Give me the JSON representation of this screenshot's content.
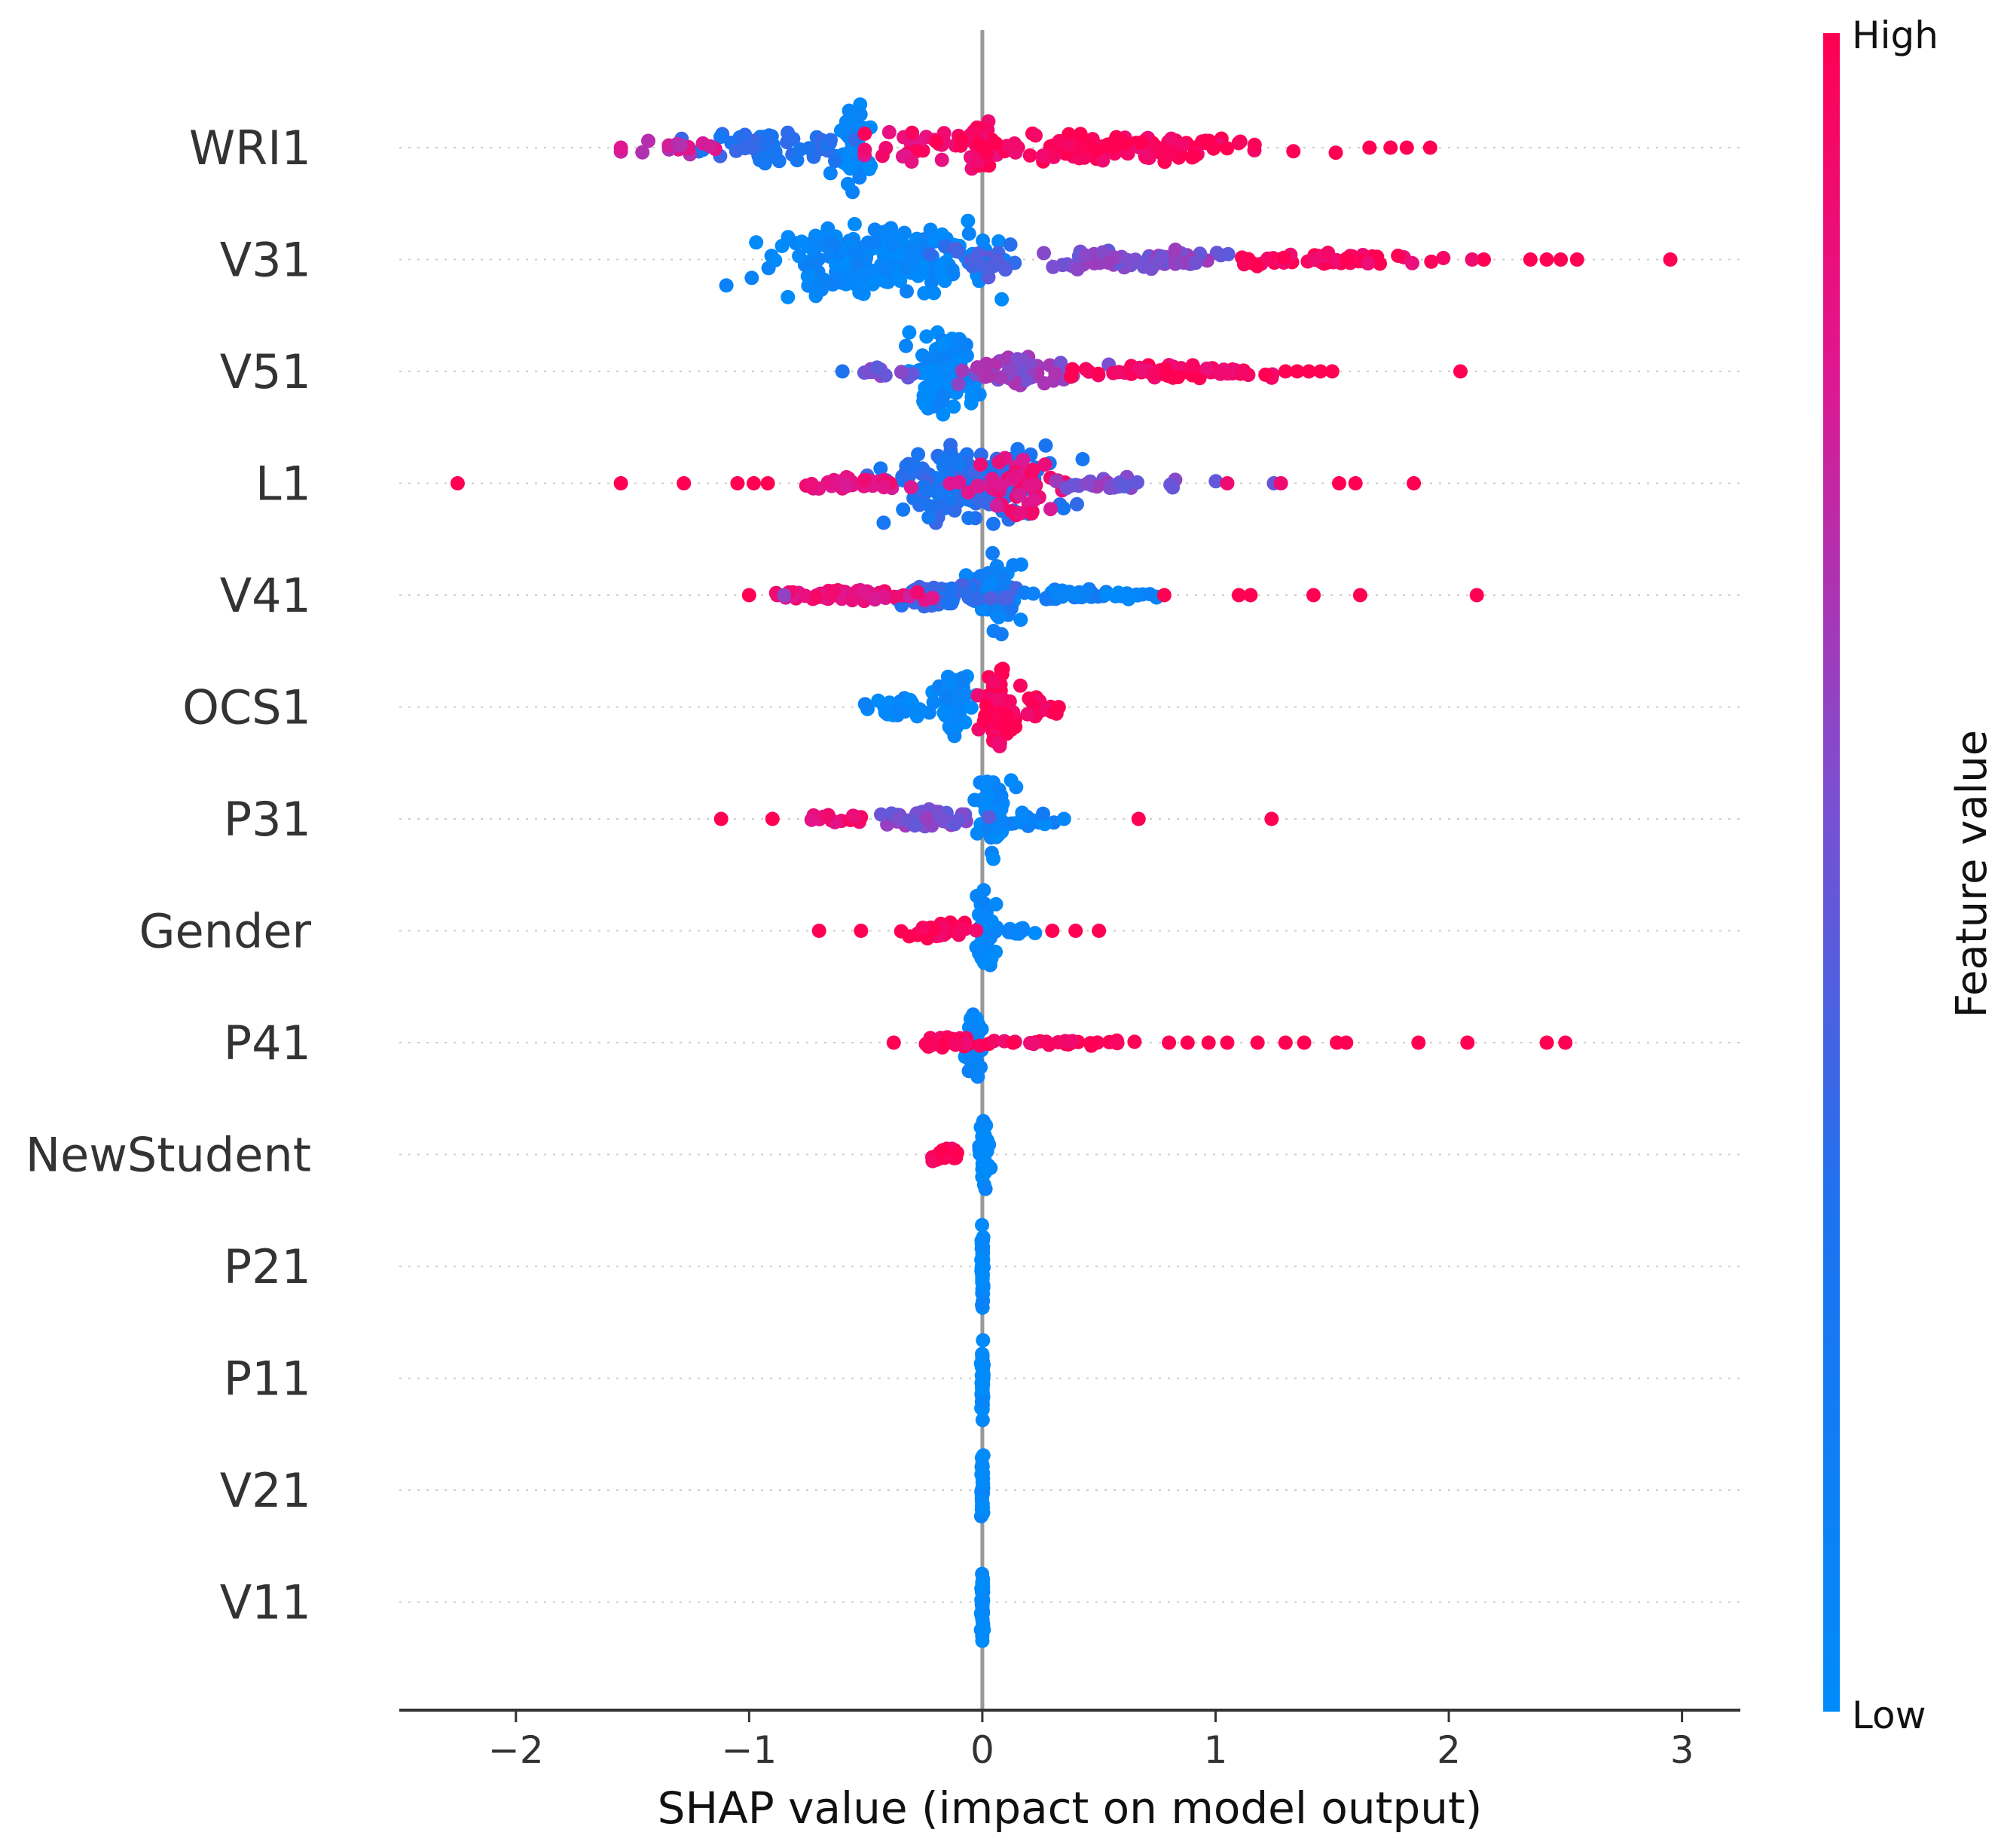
{
  "chart_data": {
    "type": "scatter",
    "subtype": "shap-beeswarm-summary",
    "xlabel": "SHAP value (impact on model output)",
    "xlim": [
      -2.5,
      3.25
    ],
    "xticks": [
      -2,
      -1,
      0,
      1,
      2,
      3
    ],
    "xtick_labels": [
      "−2",
      "−1",
      "0",
      "1",
      "2",
      "3"
    ],
    "colorbar": {
      "title": "Feature value",
      "high_label": "High",
      "low_label": "Low",
      "high_color": "#ff0052",
      "low_color": "#008bfb"
    },
    "features": [
      {
        "name": "WRI1",
        "min": -1.55,
        "max": 1.92,
        "clusters": [
          {
            "center": -0.55,
            "spread": 0.05,
            "height": 0.85,
            "n": 60,
            "color": 0.05
          },
          {
            "center": -0.9,
            "spread": 0.3,
            "height": 0.35,
            "n": 55,
            "color": 0.3
          },
          {
            "center": -1.3,
            "spread": 0.18,
            "height": 0.15,
            "n": 16,
            "color": 0.75
          },
          {
            "center": -0.3,
            "spread": 0.18,
            "height": 0.4,
            "n": 25,
            "color": 0.9
          },
          {
            "center": 0.0,
            "spread": 0.05,
            "height": 0.55,
            "n": 40,
            "color": 0.95
          },
          {
            "center": 0.6,
            "spread": 0.55,
            "height": 0.28,
            "n": 120,
            "color": 0.97
          }
        ],
        "outliers": [
          {
            "x": 1.92,
            "c": 1
          },
          {
            "x": 1.82,
            "c": 1
          },
          {
            "x": 1.75,
            "c": 1
          },
          {
            "x": 1.66,
            "c": 1
          },
          {
            "x": -1.55,
            "c": 0.8
          }
        ]
      },
      {
        "name": "V31",
        "min": -1.1,
        "max": 2.95,
        "clusters": [
          {
            "center": -0.45,
            "spread": 0.35,
            "height": 0.75,
            "n": 210,
            "color": 0.05
          },
          {
            "center": 0.0,
            "spread": 0.12,
            "height": 0.35,
            "n": 30,
            "color": 0.4
          },
          {
            "center": 0.6,
            "spread": 0.35,
            "height": 0.2,
            "n": 70,
            "color": 0.55
          },
          {
            "center": 1.5,
            "spread": 0.35,
            "height": 0.15,
            "n": 55,
            "color": 0.95
          }
        ],
        "outliers": [
          {
            "x": 2.95,
            "c": 1
          },
          {
            "x": 2.55,
            "c": 1
          },
          {
            "x": 2.48,
            "c": 1
          },
          {
            "x": 2.42,
            "c": 1
          },
          {
            "x": 2.35,
            "c": 1
          },
          {
            "x": 2.15,
            "c": 1
          },
          {
            "x": 2.1,
            "c": 0.9
          }
        ]
      },
      {
        "name": "V51",
        "min": -0.6,
        "max": 2.05,
        "clusters": [
          {
            "center": -0.17,
            "spread": 0.1,
            "height": 0.8,
            "n": 110,
            "color": 0.05
          },
          {
            "center": -0.4,
            "spread": 0.1,
            "height": 0.15,
            "n": 12,
            "color": 0.55
          },
          {
            "center": 0.15,
            "spread": 0.2,
            "height": 0.3,
            "n": 60,
            "color": 0.6
          },
          {
            "center": 0.85,
            "spread": 0.35,
            "height": 0.15,
            "n": 60,
            "color": 0.95
          }
        ],
        "outliers": [
          {
            "x": 2.05,
            "c": 1
          },
          {
            "x": 1.5,
            "c": 1
          },
          {
            "x": 1.45,
            "c": 1
          },
          {
            "x": 1.4,
            "c": 1
          },
          {
            "x": 1.35,
            "c": 1
          },
          {
            "x": 1.3,
            "c": 1
          },
          {
            "x": -0.6,
            "c": 0.3
          }
        ]
      },
      {
        "name": "L1",
        "min": -2.25,
        "max": 1.85,
        "clusters": [
          {
            "center": -0.05,
            "spread": 0.3,
            "height": 0.75,
            "n": 170,
            "color": 0.3
          },
          {
            "center": 0.15,
            "spread": 0.15,
            "height": 0.6,
            "n": 50,
            "color": 0.85
          },
          {
            "center": -0.55,
            "spread": 0.25,
            "height": 0.15,
            "n": 35,
            "color": 0.85
          },
          {
            "center": 0.6,
            "spread": 0.25,
            "height": 0.12,
            "n": 25,
            "color": 0.55
          }
        ],
        "outliers": [
          {
            "x": -2.25,
            "c": 1
          },
          {
            "x": -1.55,
            "c": 1
          },
          {
            "x": -1.28,
            "c": 1
          },
          {
            "x": -1.05,
            "c": 1
          },
          {
            "x": -0.98,
            "c": 1
          },
          {
            "x": -0.92,
            "c": 1
          },
          {
            "x": 1.05,
            "c": 0.9
          },
          {
            "x": 1.25,
            "c": 0.5
          },
          {
            "x": 1.28,
            "c": 0.9
          },
          {
            "x": 1.53,
            "c": 1
          },
          {
            "x": 1.6,
            "c": 1
          },
          {
            "x": 1.85,
            "c": 1
          }
        ]
      },
      {
        "name": "V41",
        "min": -1.0,
        "max": 2.12,
        "clusters": [
          {
            "center": 0.05,
            "spread": 0.08,
            "height": 0.8,
            "n": 60,
            "color": 0.1
          },
          {
            "center": -0.15,
            "spread": 0.2,
            "height": 0.28,
            "n": 60,
            "color": 0.35
          },
          {
            "center": -0.6,
            "spread": 0.22,
            "height": 0.12,
            "n": 50,
            "color": 0.85
          },
          {
            "center": 0.35,
            "spread": 0.15,
            "height": 0.12,
            "n": 35,
            "color": 0.15
          },
          {
            "center": 0.65,
            "spread": 0.1,
            "height": 0.08,
            "n": 14,
            "color": 0.05
          }
        ],
        "outliers": [
          {
            "x": -1.0,
            "c": 1
          },
          {
            "x": -0.88,
            "c": 0.9
          },
          {
            "x": -0.85,
            "c": 0.6
          },
          {
            "x": 1.1,
            "c": 1
          },
          {
            "x": 1.15,
            "c": 1
          },
          {
            "x": 1.42,
            "c": 1
          },
          {
            "x": 1.62,
            "c": 1
          },
          {
            "x": 2.12,
            "c": 1
          },
          {
            "x": 0.78,
            "c": 1
          }
        ]
      },
      {
        "name": "OCS1",
        "min": -0.6,
        "max": 0.38,
        "clusters": [
          {
            "center": -0.12,
            "spread": 0.06,
            "height": 0.65,
            "n": 50,
            "color": 0.05
          },
          {
            "center": -0.35,
            "spread": 0.12,
            "height": 0.2,
            "n": 35,
            "color": 0.05
          },
          {
            "center": 0.07,
            "spread": 0.07,
            "height": 0.8,
            "n": 70,
            "color": 0.98
          },
          {
            "center": 0.25,
            "spread": 0.07,
            "height": 0.25,
            "n": 18,
            "color": 0.98
          }
        ],
        "outliers": []
      },
      {
        "name": "P31",
        "min": -1.12,
        "max": 1.24,
        "clusters": [
          {
            "center": 0.05,
            "spread": 0.06,
            "height": 0.8,
            "n": 55,
            "color": 0.05
          },
          {
            "center": -0.25,
            "spread": 0.18,
            "height": 0.2,
            "n": 45,
            "color": 0.55
          },
          {
            "center": -0.65,
            "spread": 0.12,
            "height": 0.1,
            "n": 14,
            "color": 0.9
          },
          {
            "center": 0.2,
            "spread": 0.08,
            "height": 0.15,
            "n": 14,
            "color": 0.1
          }
        ],
        "outliers": [
          {
            "x": -1.12,
            "c": 1
          },
          {
            "x": -0.9,
            "c": 1
          },
          {
            "x": 0.67,
            "c": 1
          },
          {
            "x": 1.24,
            "c": 1
          },
          {
            "x": 0.35,
            "c": 0.05
          }
        ]
      },
      {
        "name": "Gender",
        "min": -0.7,
        "max": 0.5,
        "clusters": [
          {
            "center": 0.02,
            "spread": 0.04,
            "height": 0.8,
            "n": 50,
            "color": 0.02
          },
          {
            "center": 0.15,
            "spread": 0.06,
            "height": 0.12,
            "n": 10,
            "color": 0.05
          },
          {
            "center": -0.2,
            "spread": 0.12,
            "height": 0.18,
            "n": 40,
            "color": 0.98
          }
        ],
        "outliers": [
          {
            "x": -0.7,
            "c": 1
          },
          {
            "x": -0.52,
            "c": 1
          },
          {
            "x": 0.3,
            "c": 1
          },
          {
            "x": 0.4,
            "c": 1
          },
          {
            "x": 0.5,
            "c": 1
          }
        ]
      },
      {
        "name": "P41",
        "min": -0.38,
        "max": 2.5,
        "clusters": [
          {
            "center": -0.03,
            "spread": 0.03,
            "height": 0.75,
            "n": 40,
            "color": 0.05
          },
          {
            "center": -0.15,
            "spread": 0.1,
            "height": 0.12,
            "n": 25,
            "color": 0.98
          },
          {
            "center": 0.4,
            "spread": 0.3,
            "height": 0.06,
            "n": 30,
            "color": 0.98
          }
        ],
        "outliers": [
          {
            "x": -0.38,
            "c": 1
          },
          {
            "x": 0.8,
            "c": 1
          },
          {
            "x": 0.88,
            "c": 1
          },
          {
            "x": 0.97,
            "c": 1
          },
          {
            "x": 1.05,
            "c": 1
          },
          {
            "x": 1.18,
            "c": 1
          },
          {
            "x": 1.3,
            "c": 1
          },
          {
            "x": 1.38,
            "c": 1
          },
          {
            "x": 1.52,
            "c": 1
          },
          {
            "x": 1.56,
            "c": 1
          },
          {
            "x": 1.87,
            "c": 1
          },
          {
            "x": 2.08,
            "c": 1
          },
          {
            "x": 2.42,
            "c": 1
          },
          {
            "x": 2.5,
            "c": 1
          }
        ]
      },
      {
        "name": "NewStudent",
        "min": -0.28,
        "max": 0.06,
        "clusters": [
          {
            "center": 0.01,
            "spread": 0.02,
            "height": 0.8,
            "n": 45,
            "color": 0.02
          },
          {
            "center": -0.16,
            "spread": 0.07,
            "height": 0.15,
            "n": 30,
            "color": 0.98
          }
        ],
        "outliers": []
      },
      {
        "name": "P21",
        "min": 0.0,
        "max": 0.0,
        "clusters": [
          {
            "center": 0.0,
            "spread": 0.004,
            "height": 0.8,
            "n": 45,
            "color": 0.02
          }
        ],
        "outliers": []
      },
      {
        "name": "P11",
        "min": 0.0,
        "max": 0.0,
        "clusters": [
          {
            "center": 0.0,
            "spread": 0.004,
            "height": 0.8,
            "n": 45,
            "color": 0.02
          }
        ],
        "outliers": []
      },
      {
        "name": "V21",
        "min": 0.0,
        "max": 0.0,
        "clusters": [
          {
            "center": 0.0,
            "spread": 0.004,
            "height": 0.8,
            "n": 45,
            "color": 0.02
          }
        ],
        "outliers": []
      },
      {
        "name": "V11",
        "min": 0.0,
        "max": 0.0,
        "clusters": [
          {
            "center": 0.0,
            "spread": 0.004,
            "height": 0.8,
            "n": 45,
            "color": 0.02
          }
        ],
        "outliers": []
      }
    ]
  }
}
